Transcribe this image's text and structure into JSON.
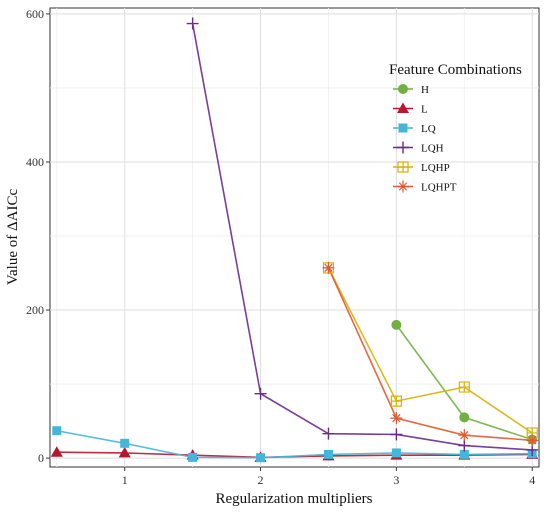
{
  "chart_data": {
    "type": "line",
    "title": "",
    "xlabel": "Regularization multipliers",
    "ylabel": "Value of ΔAICc",
    "xlim": [
      0.45,
      4.05
    ],
    "ylim": [
      -12,
      608
    ],
    "xticks": [
      1,
      2,
      3,
      4
    ],
    "yticks": [
      0,
      200,
      400,
      600
    ],
    "grid": true,
    "legend": {
      "title": "Feature Combinations",
      "placement": "top-right (inside)"
    },
    "series": [
      {
        "name": "H",
        "color": "#72b043",
        "marker": "circle",
        "x": [
          3,
          3.5,
          4
        ],
        "y": [
          180,
          55,
          25
        ]
      },
      {
        "name": "L",
        "color": "#b5172e",
        "marker": "triangle",
        "x": [
          0.5,
          1,
          1.5,
          2,
          2.5,
          3,
          3.5,
          4
        ],
        "y": [
          8,
          7,
          4,
          1,
          3,
          4,
          4,
          5
        ]
      },
      {
        "name": "LQ",
        "color": "#44b7d9",
        "marker": "square",
        "x": [
          0.5,
          1,
          1.5,
          2,
          2.5,
          3,
          3.5,
          4
        ],
        "y": [
          37,
          20,
          1,
          0.5,
          5,
          7,
          5,
          6
        ]
      },
      {
        "name": "LQH",
        "color": "#6a2a8e",
        "marker": "plus",
        "x": [
          1.5,
          2,
          2.5,
          3,
          3.5,
          4
        ],
        "y": [
          587,
          87,
          33,
          32,
          17,
          11
        ]
      },
      {
        "name": "LQHP",
        "color": "#d5b20c",
        "marker": "square-cross",
        "x": [
          2.5,
          3,
          3.5,
          4
        ],
        "y": [
          257,
          77,
          96,
          34
        ]
      },
      {
        "name": "LQHPT",
        "color": "#e05a2f",
        "marker": "asterisk",
        "x": [
          2.5,
          3,
          3.5,
          4
        ],
        "y": [
          257,
          54,
          31,
          24
        ]
      }
    ]
  }
}
